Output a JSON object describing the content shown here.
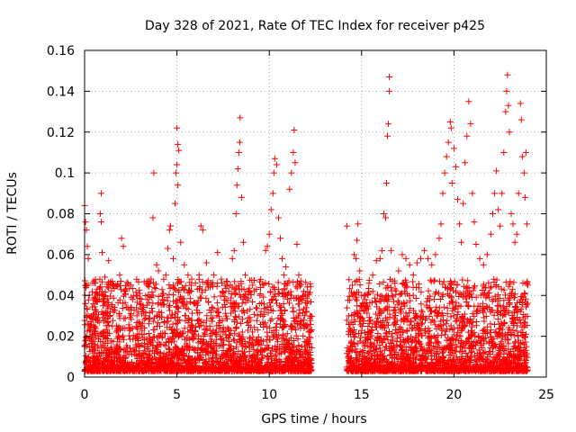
{
  "chart_data": {
    "type": "scatter",
    "title": "Day 328 of 2021, Rate Of TEC Index for receiver p425",
    "xlabel": "GPS time / hours",
    "ylabel": "ROTI / TECUs",
    "xlim": [
      0,
      25
    ],
    "ylim": [
      0,
      0.16
    ],
    "x_ticks": [
      0,
      5,
      10,
      15,
      20,
      25
    ],
    "y_ticks": [
      0,
      0.02,
      0.04,
      0.06,
      0.08,
      0.1,
      0.12,
      0.14,
      0.16
    ],
    "x_tick_labels": [
      "0",
      "5",
      "10",
      "15",
      "20",
      "25"
    ],
    "y_tick_labels": [
      "0",
      "0.02",
      "0.04",
      "0.06",
      "0.08",
      "0.1",
      "0.12",
      "0.14",
      "0.16"
    ],
    "grid": true,
    "marker": "+",
    "color": "#ff0000",
    "data_gap_hours": [
      12.3,
      14.2
    ],
    "series": [
      {
        "points": [
          [
            0.0,
            0.084
          ],
          [
            0.05,
            0.076
          ],
          [
            0.1,
            0.072
          ],
          [
            0.15,
            0.064
          ],
          [
            0.2,
            0.058
          ],
          [
            0.05,
            0.036
          ],
          [
            0.1,
            0.03
          ],
          [
            0.2,
            0.045
          ],
          [
            0.3,
            0.024
          ],
          [
            0.4,
            0.018
          ],
          [
            0.6,
            0.028
          ],
          [
            0.8,
            0.04
          ],
          [
            0.85,
            0.08
          ],
          [
            0.9,
            0.076
          ],
          [
            0.95,
            0.061
          ],
          [
            0.9,
            0.09
          ],
          [
            1.0,
            0.035
          ],
          [
            1.1,
            0.049
          ],
          [
            1.3,
            0.057
          ],
          [
            1.5,
            0.047
          ],
          [
            1.7,
            0.045
          ],
          [
            1.9,
            0.05
          ],
          [
            2.0,
            0.068
          ],
          [
            2.1,
            0.064
          ],
          [
            2.2,
            0.042
          ],
          [
            2.4,
            0.033
          ],
          [
            2.6,
            0.038
          ],
          [
            2.8,
            0.04
          ],
          [
            3.0,
            0.036
          ],
          [
            3.2,
            0.032
          ],
          [
            3.4,
            0.038
          ],
          [
            3.6,
            0.048
          ],
          [
            3.7,
            0.078
          ],
          [
            3.75,
            0.1
          ],
          [
            3.9,
            0.055
          ],
          [
            4.0,
            0.052
          ],
          [
            4.2,
            0.04
          ],
          [
            4.4,
            0.05
          ],
          [
            4.5,
            0.063
          ],
          [
            4.6,
            0.072
          ],
          [
            4.65,
            0.074
          ],
          [
            4.8,
            0.058
          ],
          [
            4.9,
            0.085
          ],
          [
            4.95,
            0.1
          ],
          [
            5.0,
            0.104
          ],
          [
            5.0,
            0.122
          ],
          [
            5.05,
            0.114
          ],
          [
            5.1,
            0.111
          ],
          [
            5.05,
            0.094
          ],
          [
            5.2,
            0.066
          ],
          [
            5.4,
            0.055
          ],
          [
            5.6,
            0.05
          ],
          [
            5.8,
            0.048
          ],
          [
            6.0,
            0.046
          ],
          [
            6.2,
            0.05
          ],
          [
            6.3,
            0.074
          ],
          [
            6.4,
            0.072
          ],
          [
            6.6,
            0.056
          ],
          [
            6.8,
            0.044
          ],
          [
            7.0,
            0.05
          ],
          [
            7.2,
            0.061
          ],
          [
            7.4,
            0.048
          ],
          [
            7.6,
            0.045
          ],
          [
            7.8,
            0.042
          ],
          [
            8.0,
            0.058
          ],
          [
            8.1,
            0.062
          ],
          [
            8.2,
            0.08
          ],
          [
            8.25,
            0.094
          ],
          [
            8.3,
            0.102
          ],
          [
            8.35,
            0.11
          ],
          [
            8.4,
            0.115
          ],
          [
            8.42,
            0.127
          ],
          [
            8.5,
            0.088
          ],
          [
            8.6,
            0.066
          ],
          [
            8.7,
            0.05
          ],
          [
            8.9,
            0.042
          ],
          [
            9.1,
            0.045
          ],
          [
            9.3,
            0.043
          ],
          [
            9.5,
            0.04
          ],
          [
            9.7,
            0.045
          ],
          [
            9.8,
            0.062
          ],
          [
            9.9,
            0.064
          ],
          [
            10.0,
            0.07
          ],
          [
            10.1,
            0.082
          ],
          [
            10.2,
            0.09
          ],
          [
            10.25,
            0.1
          ],
          [
            10.3,
            0.107
          ],
          [
            10.4,
            0.104
          ],
          [
            10.5,
            0.078
          ],
          [
            10.6,
            0.068
          ],
          [
            10.7,
            0.058
          ],
          [
            10.8,
            0.05
          ],
          [
            10.9,
            0.054
          ],
          [
            11.0,
            0.046
          ],
          [
            11.1,
            0.092
          ],
          [
            11.2,
            0.1
          ],
          [
            11.3,
            0.11
          ],
          [
            11.35,
            0.121
          ],
          [
            11.4,
            0.105
          ],
          [
            11.5,
            0.065
          ],
          [
            11.6,
            0.05
          ],
          [
            11.8,
            0.04
          ],
          [
            12.0,
            0.034
          ],
          [
            12.2,
            0.03
          ],
          [
            14.2,
            0.074
          ],
          [
            14.3,
            0.03
          ],
          [
            14.5,
            0.045
          ],
          [
            14.6,
            0.06
          ],
          [
            14.7,
            0.058
          ],
          [
            14.75,
            0.067
          ],
          [
            14.8,
            0.075
          ],
          [
            14.9,
            0.052
          ],
          [
            15.0,
            0.04
          ],
          [
            15.2,
            0.038
          ],
          [
            15.4,
            0.046
          ],
          [
            15.6,
            0.05
          ],
          [
            15.8,
            0.057
          ],
          [
            16.0,
            0.058
          ],
          [
            16.1,
            0.062
          ],
          [
            16.2,
            0.08
          ],
          [
            16.3,
            0.078
          ],
          [
            16.35,
            0.095
          ],
          [
            16.4,
            0.118
          ],
          [
            16.45,
            0.124
          ],
          [
            16.5,
            0.14
          ],
          [
            16.5,
            0.147
          ],
          [
            16.6,
            0.062
          ],
          [
            16.8,
            0.046
          ],
          [
            17.0,
            0.052
          ],
          [
            17.2,
            0.06
          ],
          [
            17.4,
            0.058
          ],
          [
            17.6,
            0.055
          ],
          [
            17.8,
            0.05
          ],
          [
            18.0,
            0.056
          ],
          [
            18.2,
            0.058
          ],
          [
            18.4,
            0.062
          ],
          [
            18.6,
            0.058
          ],
          [
            18.8,
            0.055
          ],
          [
            19.0,
            0.06
          ],
          [
            19.2,
            0.068
          ],
          [
            19.3,
            0.075
          ],
          [
            19.4,
            0.09
          ],
          [
            19.5,
            0.1
          ],
          [
            19.6,
            0.108
          ],
          [
            19.7,
            0.115
          ],
          [
            19.8,
            0.125
          ],
          [
            19.85,
            0.122
          ],
          [
            19.9,
            0.095
          ],
          [
            20.0,
            0.112
          ],
          [
            20.1,
            0.103
          ],
          [
            20.2,
            0.087
          ],
          [
            20.3,
            0.075
          ],
          [
            20.4,
            0.066
          ],
          [
            20.5,
            0.085
          ],
          [
            20.6,
            0.105
          ],
          [
            20.7,
            0.118
          ],
          [
            20.8,
            0.135
          ],
          [
            20.9,
            0.124
          ],
          [
            21.0,
            0.09
          ],
          [
            21.1,
            0.076
          ],
          [
            21.2,
            0.065
          ],
          [
            21.4,
            0.058
          ],
          [
            21.6,
            0.055
          ],
          [
            21.8,
            0.06
          ],
          [
            22.0,
            0.07
          ],
          [
            22.1,
            0.08
          ],
          [
            22.2,
            0.09
          ],
          [
            22.3,
            0.101
          ],
          [
            22.4,
            0.082
          ],
          [
            22.5,
            0.074
          ],
          [
            22.6,
            0.09
          ],
          [
            22.7,
            0.11
          ],
          [
            22.8,
            0.13
          ],
          [
            22.85,
            0.14
          ],
          [
            22.9,
            0.148
          ],
          [
            22.95,
            0.133
          ],
          [
            23.0,
            0.12
          ],
          [
            23.1,
            0.08
          ],
          [
            23.2,
            0.075
          ],
          [
            23.3,
            0.066
          ],
          [
            23.4,
            0.07
          ],
          [
            23.5,
            0.09
          ],
          [
            23.6,
            0.134
          ],
          [
            23.65,
            0.126
          ],
          [
            23.7,
            0.108
          ],
          [
            23.8,
            0.1
          ],
          [
            23.85,
            0.088
          ],
          [
            23.9,
            0.11
          ],
          [
            23.95,
            0.075
          ],
          [
            24.0,
            0.045
          ]
        ]
      }
    ]
  }
}
